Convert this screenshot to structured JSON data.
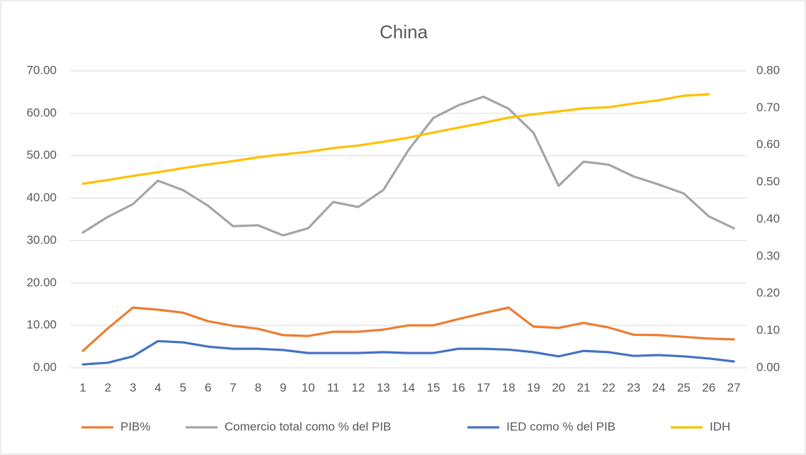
{
  "chart_data": {
    "type": "line",
    "title": "China",
    "categories": [
      "1",
      "2",
      "3",
      "4",
      "5",
      "6",
      "7",
      "8",
      "9",
      "10",
      "11",
      "12",
      "13",
      "14",
      "15",
      "16",
      "17",
      "18",
      "19",
      "20",
      "21",
      "22",
      "23",
      "24",
      "25",
      "26",
      "27"
    ],
    "series": [
      {
        "name": "PIB%",
        "color": "#ed7d31",
        "values": [
          4.0,
          9.3,
          14.2,
          13.7,
          13.0,
          11.0,
          9.9,
          9.2,
          7.7,
          7.5,
          8.5,
          8.5,
          9.0,
          10.0,
          10.0,
          11.5,
          12.9,
          14.2,
          9.7,
          9.4,
          10.6,
          9.5,
          7.8,
          7.7,
          7.3,
          6.9,
          6.7
        ]
      },
      {
        "name": "Comercio total como % del PIB",
        "color": "#a5a5a5",
        "values": [
          31.9,
          35.6,
          38.6,
          44.1,
          41.9,
          38.2,
          33.4,
          33.6,
          31.2,
          32.9,
          39.1,
          37.9,
          41.9,
          51.3,
          58.9,
          61.9,
          63.9,
          61.1,
          55.4,
          42.9,
          48.6,
          47.9,
          45.1,
          43.2,
          41.1,
          35.7,
          32.9
        ]
      },
      {
        "name": "IED como % del PIB",
        "color": "#4472c4",
        "values": [
          0.8,
          1.2,
          2.7,
          6.3,
          6.0,
          5.0,
          4.5,
          4.5,
          4.2,
          3.5,
          3.5,
          3.5,
          3.7,
          3.5,
          3.5,
          4.5,
          4.5,
          4.3,
          3.7,
          2.7,
          4.0,
          3.7,
          2.8,
          3.0,
          2.7,
          2.2,
          1.5
        ]
      },
      {
        "name": "IDH",
        "color": "#ffc000",
        "axis": "y2",
        "values": [
          0.496,
          0.506,
          0.517,
          0.527,
          0.538,
          0.548,
          0.557,
          0.567,
          0.575,
          0.582,
          0.592,
          0.599,
          0.609,
          0.62,
          0.634,
          0.647,
          0.66,
          0.674,
          0.683,
          0.691,
          0.699,
          0.702,
          0.712,
          0.721,
          0.733,
          0.737,
          null
        ]
      }
    ],
    "ylim": [
      0,
      70
    ],
    "yticks": [
      {
        "value": 0,
        "label": "0.00"
      },
      {
        "value": 10,
        "label": "10.00"
      },
      {
        "value": 20,
        "label": "20.00"
      },
      {
        "value": 30,
        "label": "30.00"
      },
      {
        "value": 40,
        "label": "40.00"
      },
      {
        "value": 50,
        "label": "50.00"
      },
      {
        "value": 60,
        "label": "60.00"
      },
      {
        "value": 70,
        "label": "70.00"
      }
    ],
    "y2lim": [
      0,
      0.8
    ],
    "y2ticks": [
      {
        "value": 0,
        "label": "0.00"
      },
      {
        "value": 0.1,
        "label": "0.10"
      },
      {
        "value": 0.2,
        "label": "0.20"
      },
      {
        "value": 0.3,
        "label": "0.30"
      },
      {
        "value": 0.4,
        "label": "0.40"
      },
      {
        "value": 0.5,
        "label": "0.50"
      },
      {
        "value": 0.6,
        "label": "0.60"
      },
      {
        "value": 0.7,
        "label": "0.70"
      },
      {
        "value": 0.8,
        "label": "0.80"
      }
    ],
    "grid": true,
    "legend": "bottom"
  }
}
